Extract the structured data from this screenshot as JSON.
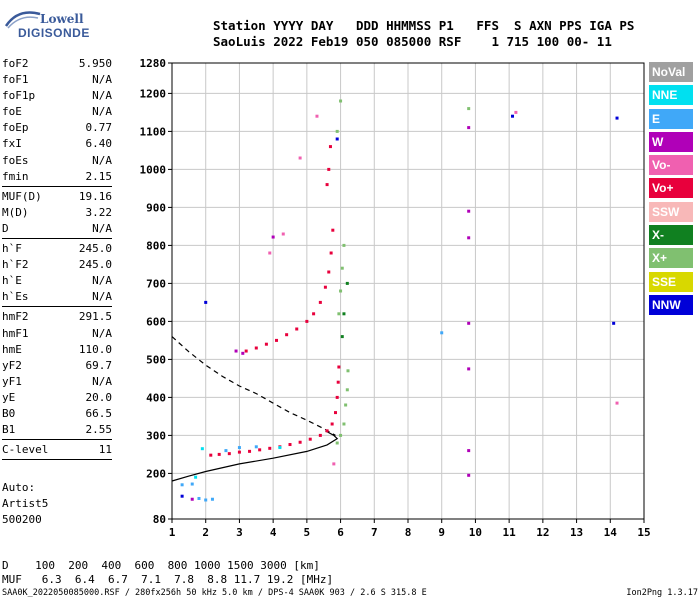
{
  "logo": {
    "line1": "Lowell",
    "line2": "DIGISONDE"
  },
  "header": {
    "line1": "Station YYYY DAY   DDD HHMMSS P1   FFS  S AXN PPS IGA PS",
    "line2": "SaoLuis 2022 Feb19 050 085000 RSF    1 715 100 00- 11"
  },
  "params": [
    {
      "name": "foF2",
      "value": "5.950"
    },
    {
      "name": "foF1",
      "value": "N/A"
    },
    {
      "name": "foF1p",
      "value": "N/A"
    },
    {
      "name": "foE",
      "value": "N/A"
    },
    {
      "name": "foEp",
      "value": "0.77"
    },
    {
      "name": "fxI",
      "value": "6.40"
    },
    {
      "name": "foEs",
      "value": "N/A"
    },
    {
      "name": "fmin",
      "value": "2.15"
    },
    {
      "sep": true
    },
    {
      "name": "MUF(D)",
      "value": "19.16"
    },
    {
      "name": "M(D)",
      "value": "3.22"
    },
    {
      "name": "D",
      "value": "N/A"
    },
    {
      "sep": true
    },
    {
      "name": "h`F",
      "value": "245.0"
    },
    {
      "name": "h`F2",
      "value": "245.0"
    },
    {
      "name": "h`E",
      "value": "N/A"
    },
    {
      "name": "h`Es",
      "value": "N/A"
    },
    {
      "sep": true
    },
    {
      "name": "hmF2",
      "value": "291.5"
    },
    {
      "name": "hmF1",
      "value": "N/A"
    },
    {
      "name": "hmE",
      "value": "110.0"
    },
    {
      "name": "yF2",
      "value": "69.7"
    },
    {
      "name": "yF1",
      "value": "N/A"
    },
    {
      "name": "yE",
      "value": "20.0"
    },
    {
      "name": "B0",
      "value": "66.5"
    },
    {
      "name": "B1",
      "value": "2.55"
    },
    {
      "sep": true
    },
    {
      "name": "C-level",
      "value": "11"
    },
    {
      "sep": true
    }
  ],
  "auto": {
    "line1": "Auto:",
    "line2": "Artist5",
    "line3": "500200"
  },
  "legend": [
    {
      "label": "NoVal",
      "color": "#a0a0a0"
    },
    {
      "label": "NNE",
      "color": "#00e0f0"
    },
    {
      "label": "E",
      "color": "#40a8f8"
    },
    {
      "label": "W",
      "color": "#b000b8"
    },
    {
      "label": "Vo-",
      "color": "#f060b0"
    },
    {
      "label": "Vo+",
      "color": "#e8003c"
    },
    {
      "label": "SSW",
      "color": "#f8b8b8"
    },
    {
      "label": "X-",
      "color": "#108020"
    },
    {
      "label": "X+",
      "color": "#80c070"
    },
    {
      "label": "SSE",
      "color": "#d8d800"
    },
    {
      "label": "NNW",
      "color": "#0000d8"
    }
  ],
  "bottom": {
    "d_line": "D    100  200  400  600  800 1000 1500 3000 [km]",
    "muf_line": "MUF   6.3  6.4  6.7  7.1  7.8  8.8 11.7 19.2 [MHz]"
  },
  "footer": {
    "left": "SAA0K_2022050085000.RSF / 280fx256h 50 kHz 5.0 km / DPS-4 SAA0K 903 / 2.6 S 315.8 E",
    "right": "Ion2Png 1.3.17"
  },
  "chart_data": {
    "type": "scatter",
    "title": "",
    "xlabel": "",
    "ylabel": "",
    "xlim": [
      1,
      15
    ],
    "ylim": [
      80,
      1280
    ],
    "xticks": [
      1,
      2,
      3,
      4,
      5,
      6,
      7,
      8,
      9,
      10,
      11,
      12,
      13,
      14,
      15
    ],
    "yticks": [
      80,
      200,
      300,
      400,
      500,
      600,
      700,
      800,
      900,
      1000,
      1100,
      1200,
      1280
    ],
    "grid": true,
    "series": [
      {
        "name": "Vo+",
        "color": "#e8003c",
        "points": [
          [
            2.15,
            248
          ],
          [
            2.4,
            250
          ],
          [
            2.7,
            252
          ],
          [
            3.0,
            256
          ],
          [
            3.3,
            258
          ],
          [
            3.6,
            262
          ],
          [
            3.9,
            266
          ],
          [
            4.2,
            270
          ],
          [
            4.5,
            276
          ],
          [
            4.8,
            282
          ],
          [
            5.1,
            290
          ],
          [
            5.4,
            300
          ],
          [
            5.6,
            312
          ],
          [
            5.75,
            330
          ],
          [
            5.85,
            360
          ],
          [
            5.9,
            400
          ],
          [
            5.93,
            440
          ],
          [
            5.95,
            480
          ],
          [
            3.2,
            522
          ],
          [
            3.5,
            530
          ],
          [
            3.8,
            540
          ],
          [
            4.1,
            550
          ],
          [
            4.4,
            565
          ],
          [
            4.7,
            580
          ],
          [
            5.0,
            600
          ],
          [
            5.2,
            620
          ],
          [
            5.4,
            650
          ],
          [
            5.55,
            690
          ],
          [
            5.65,
            730
          ],
          [
            5.72,
            780
          ],
          [
            5.77,
            840
          ],
          [
            5.6,
            960
          ],
          [
            5.65,
            1000
          ],
          [
            5.7,
            1060
          ]
        ]
      },
      {
        "name": "X+",
        "color": "#80c070",
        "points": [
          [
            5.9,
            280
          ],
          [
            6.0,
            300
          ],
          [
            6.1,
            330
          ],
          [
            6.15,
            380
          ],
          [
            6.2,
            420
          ],
          [
            6.22,
            470
          ],
          [
            5.95,
            620
          ],
          [
            6.0,
            680
          ],
          [
            6.05,
            740
          ],
          [
            6.1,
            800
          ],
          [
            5.9,
            1100
          ],
          [
            6.0,
            1180
          ],
          [
            9.8,
            1160
          ]
        ]
      },
      {
        "name": "X-",
        "color": "#108020",
        "points": [
          [
            6.05,
            560
          ],
          [
            6.1,
            620
          ],
          [
            6.2,
            700
          ]
        ]
      },
      {
        "name": "E",
        "color": "#40a8f8",
        "points": [
          [
            1.3,
            170
          ],
          [
            1.6,
            172
          ],
          [
            1.8,
            134
          ],
          [
            2.0,
            130
          ],
          [
            2.2,
            132
          ],
          [
            2.6,
            260
          ],
          [
            3.0,
            268
          ],
          [
            3.5,
            270
          ],
          [
            9.0,
            570
          ]
        ]
      },
      {
        "name": "NNE",
        "color": "#00e0f0",
        "points": [
          [
            1.7,
            190
          ],
          [
            1.9,
            265
          ],
          [
            4.2,
            268
          ]
        ]
      },
      {
        "name": "NNW",
        "color": "#0000d8",
        "points": [
          [
            1.3,
            140
          ],
          [
            2.0,
            650
          ],
          [
            5.9,
            1080
          ],
          [
            11.1,
            1140
          ],
          [
            14.2,
            1135
          ],
          [
            14.1,
            595
          ]
        ]
      },
      {
        "name": "W",
        "color": "#b000b8",
        "points": [
          [
            2.9,
            522
          ],
          [
            3.1,
            516
          ],
          [
            4.0,
            822
          ],
          [
            9.8,
            1110
          ],
          [
            9.8,
            890
          ],
          [
            9.8,
            820
          ],
          [
            9.8,
            595
          ],
          [
            9.8,
            475
          ],
          [
            9.8,
            260
          ],
          [
            9.8,
            195
          ],
          [
            1.6,
            132
          ]
        ]
      },
      {
        "name": "Vo-",
        "color": "#f060b0",
        "points": [
          [
            3.9,
            780
          ],
          [
            4.3,
            830
          ],
          [
            4.8,
            1030
          ],
          [
            5.3,
            1140
          ],
          [
            5.8,
            225
          ],
          [
            11.2,
            1150
          ],
          [
            14.2,
            385
          ]
        ]
      }
    ],
    "curves": [
      {
        "name": "profile",
        "style": "solid",
        "points": [
          [
            1,
            180
          ],
          [
            1.5,
            193
          ],
          [
            2.0,
            205
          ],
          [
            3.0,
            225
          ],
          [
            4.0,
            240
          ],
          [
            5.0,
            258
          ],
          [
            5.6,
            275
          ],
          [
            5.9,
            291.5
          ],
          [
            5.8,
            300
          ],
          [
            5.55,
            312
          ]
        ]
      },
      {
        "name": "profile-extension",
        "style": "dashed",
        "points": [
          [
            1,
            560
          ],
          [
            1.5,
            520
          ],
          [
            2.0,
            485
          ],
          [
            2.5,
            455
          ],
          [
            3.0,
            430
          ],
          [
            3.5,
            410
          ],
          [
            4.0,
            385
          ],
          [
            4.5,
            360
          ],
          [
            5.0,
            340
          ],
          [
            5.5,
            318
          ],
          [
            5.85,
            300
          ]
        ]
      }
    ]
  }
}
